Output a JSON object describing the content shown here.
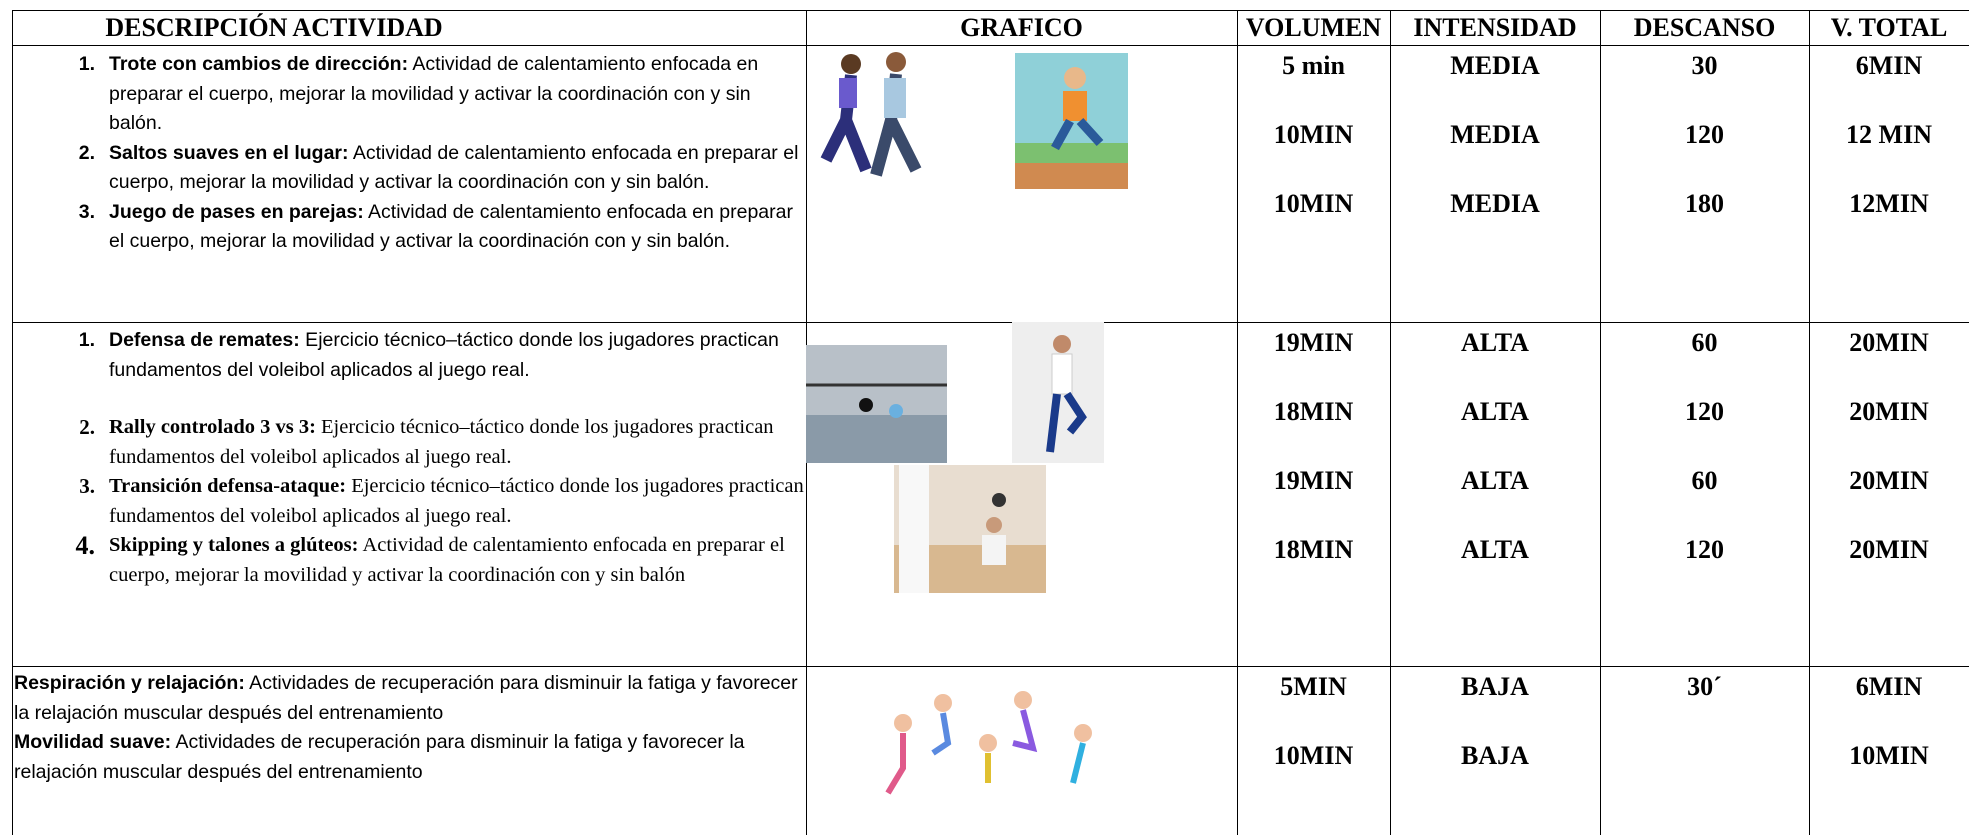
{
  "header": {
    "descripcion": "DESCRIPCIÓN ACTIVIDAD",
    "grafico": "GRAFICO",
    "volumen": "VOLUMEN",
    "intensidad": "INTENSIDAD",
    "descanso": "DESCANSO",
    "v_total": "V. TOTAL"
  },
  "rows": [
    {
      "items": [
        {
          "number": "1.",
          "title": "Trote con cambios de dirección:",
          "text": " Actividad de calentamiento enfocada en preparar el cuerpo, mejorar la movilidad y activar la coordinación con y sin balón."
        },
        {
          "number": "2.",
          "title": "Saltos suaves en el lugar:",
          "text": " Actividad de calentamiento enfocada en preparar el cuerpo, mejorar la movilidad y activar la coordinación con y sin balón."
        },
        {
          "number": "3.",
          "title": "Juego de pases en parejas:",
          "text": " Actividad de calentamiento enfocada en preparar el cuerpo, mejorar la movilidad y activar la coordinación con y sin balón."
        }
      ],
      "values": [
        [
          "5 min",
          "MEDIA",
          "30",
          "6MIN"
        ],
        [
          "10MIN",
          "MEDIA",
          "120",
          "12 MIN"
        ],
        [
          "10MIN",
          "MEDIA",
          "180",
          "12MIN"
        ]
      ]
    },
    {
      "items": [
        {
          "number": "1.",
          "title": "Defensa de remates:",
          "text": " Ejercicio técnico–táctico donde los jugadores practican fundamentos del voleibol aplicados al juego real."
        },
        {
          "number": "2.",
          "title": "Rally controlado 3 vs 3:",
          "text": " Ejercicio técnico–táctico donde los jugadores practican fundamentos del voleibol aplicados al juego real."
        },
        {
          "number": "3.",
          "title": "Transición defensa-ataque:",
          "text": " Ejercicio técnico–táctico donde los jugadores practican fundamentos del voleibol aplicados al juego real."
        },
        {
          "number": "4.",
          "title": "Skipping y talones a glúteos:",
          "text": " Actividad de calentamiento enfocada en preparar el cuerpo, mejorar la movilidad y activar la coordinación con y sin balón"
        }
      ],
      "values": [
        [
          "19MIN",
          "ALTA",
          "60",
          "20MIN"
        ],
        [
          "18MIN",
          "ALTA",
          "120",
          "20MIN"
        ],
        [
          "19MIN",
          "ALTA",
          "60",
          "20MIN"
        ],
        [
          "18MIN",
          "ALTA",
          "120",
          "20MIN"
        ]
      ]
    },
    {
      "items": [
        {
          "title": "Respiración y relajación:",
          "text": " Actividades de recuperación para disminuir la fatiga y favorecer la relajación muscular después del entrenamiento"
        },
        {
          "title": "Movilidad suave:",
          "text": " Actividades de recuperación para disminuir la fatiga y favorecer la relajación muscular después del entrenamiento"
        }
      ],
      "values": [
        [
          "5MIN",
          "BAJA",
          "30´",
          "6MIN"
        ],
        [
          "10MIN",
          "BAJA",
          null,
          "10MIN"
        ]
      ]
    }
  ]
}
